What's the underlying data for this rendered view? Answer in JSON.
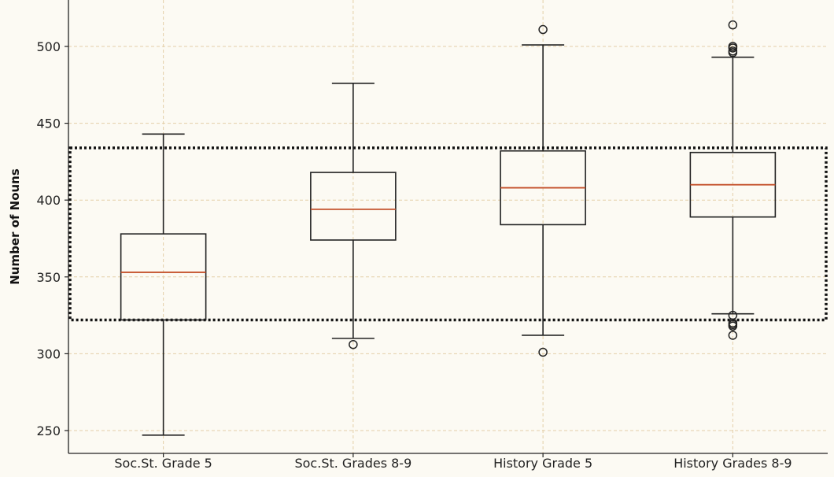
{
  "chart_data": {
    "type": "box",
    "ylabel": "Number of Nouns",
    "xlabel": "",
    "title": "",
    "ylim": [
      240,
      525
    ],
    "yticks": [
      250,
      300,
      350,
      400,
      450,
      500
    ],
    "grid": true,
    "categories": [
      "Soc.St. Grade 5",
      "Soc.St. Grades 8-9",
      "History Grade 5",
      "History Grades 8-9"
    ],
    "boxes": [
      {
        "category": "Soc.St. Grade 5",
        "whisker_low": 247,
        "q1": 322,
        "median": 353,
        "q3": 378,
        "whisker_high": 443,
        "outliers": []
      },
      {
        "category": "Soc.St. Grades 8-9",
        "whisker_low": 310,
        "q1": 374,
        "median": 394,
        "q3": 418,
        "whisker_high": 476,
        "outliers": [
          306
        ]
      },
      {
        "category": "History Grade 5",
        "whisker_low": 312,
        "q1": 384,
        "median": 408,
        "q3": 432,
        "whisker_high": 501,
        "outliers": [
          301,
          511
        ]
      },
      {
        "category": "History Grades 8-9",
        "whisker_low": 326,
        "q1": 389,
        "median": 410,
        "q3": 431,
        "whisker_high": 493,
        "outliers": [
          312,
          318,
          319,
          320,
          325,
          496,
          497,
          499,
          500,
          514
        ]
      }
    ],
    "highlight_region": {
      "y_low": 322,
      "y_high": 434,
      "style": "dotted"
    },
    "colors": {
      "background": "#fcfaf3",
      "grid": "#e3cfa8",
      "box": "#222222",
      "median": "#c4502a",
      "highlight": "#111111"
    }
  }
}
